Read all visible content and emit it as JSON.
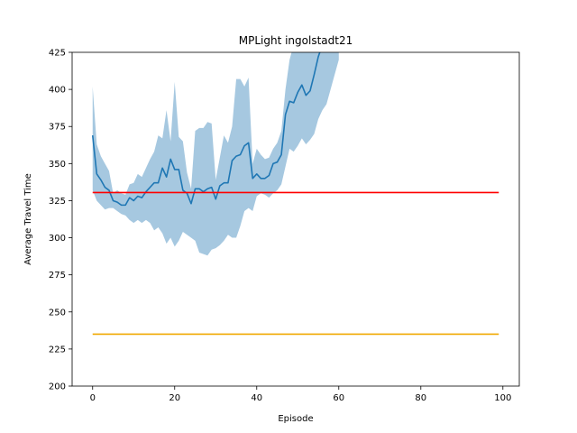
{
  "chart_data": {
    "type": "line",
    "title": "MPLight ingolstadt21",
    "xlabel": "Episode",
    "ylabel": "Average Travel Time",
    "xlim": [
      -5,
      104
    ],
    "ylim": [
      200,
      425
    ],
    "xticks": [
      0,
      20,
      40,
      60,
      80,
      100
    ],
    "yticks": [
      200,
      225,
      250,
      275,
      300,
      325,
      350,
      375,
      400,
      425
    ],
    "grid": false,
    "legend": "none",
    "series": [
      {
        "kind": "mean-with-band",
        "color": "#1f77b4",
        "band_color": "#a6c8e0",
        "x": [
          0,
          1,
          2,
          3,
          4,
          5,
          6,
          7,
          8,
          9,
          10,
          11,
          12,
          13,
          14,
          15,
          16,
          17,
          18,
          19,
          20,
          21,
          22,
          23,
          24,
          25,
          26,
          27,
          28,
          29,
          30,
          31,
          32,
          33,
          34,
          35,
          36,
          37,
          38,
          39,
          40,
          41,
          42,
          43,
          44,
          45,
          46,
          47,
          48,
          49,
          50,
          51,
          52,
          53,
          54,
          55,
          56,
          57,
          58,
          59,
          60
        ],
        "mean": [
          369,
          343,
          339,
          334,
          332,
          325,
          324,
          322,
          322,
          327,
          325,
          328,
          327,
          331,
          334,
          337,
          337,
          347,
          341,
          353,
          346,
          346,
          332,
          330,
          323,
          333,
          333,
          331,
          333,
          334,
          326,
          335,
          337,
          337,
          352,
          355,
          356,
          362,
          364,
          340,
          343,
          340,
          340,
          342,
          350,
          351,
          356,
          383,
          392,
          391,
          398,
          403,
          396,
          399,
          410,
          422,
          430,
          438,
          445,
          450,
          455
        ],
        "upper": [
          402,
          363,
          355,
          350,
          345,
          330,
          332,
          330,
          329,
          336,
          337,
          343,
          341,
          347,
          353,
          358,
          369,
          367,
          386,
          365,
          405,
          368,
          365,
          344,
          333,
          372,
          374,
          374,
          378,
          377,
          339,
          354,
          369,
          364,
          375,
          407,
          407,
          402,
          408,
          350,
          360,
          356,
          353,
          354,
          360,
          364,
          372,
          400,
          420,
          430,
          435,
          440,
          438,
          436,
          445,
          450,
          455,
          460,
          465,
          470,
          475
        ],
        "lower": [
          332,
          325,
          322,
          319,
          320,
          320,
          318,
          316,
          315,
          312,
          310,
          312,
          310,
          312,
          310,
          305,
          307,
          303,
          296,
          300,
          294,
          298,
          304,
          302,
          300,
          298,
          290,
          289,
          288,
          292,
          293,
          295,
          298,
          302,
          300,
          300,
          308,
          318,
          320,
          318,
          328,
          330,
          329,
          327,
          330,
          332,
          336,
          348,
          360,
          358,
          362,
          367,
          363,
          366,
          370,
          380,
          386,
          390,
          400,
          410,
          420
        ]
      },
      {
        "kind": "hline",
        "color": "#ff0000",
        "y": 330.5,
        "x_range": [
          0,
          99
        ]
      },
      {
        "kind": "hline",
        "color": "#f0a800",
        "y": 235,
        "x_range": [
          0,
          99
        ]
      }
    ]
  }
}
